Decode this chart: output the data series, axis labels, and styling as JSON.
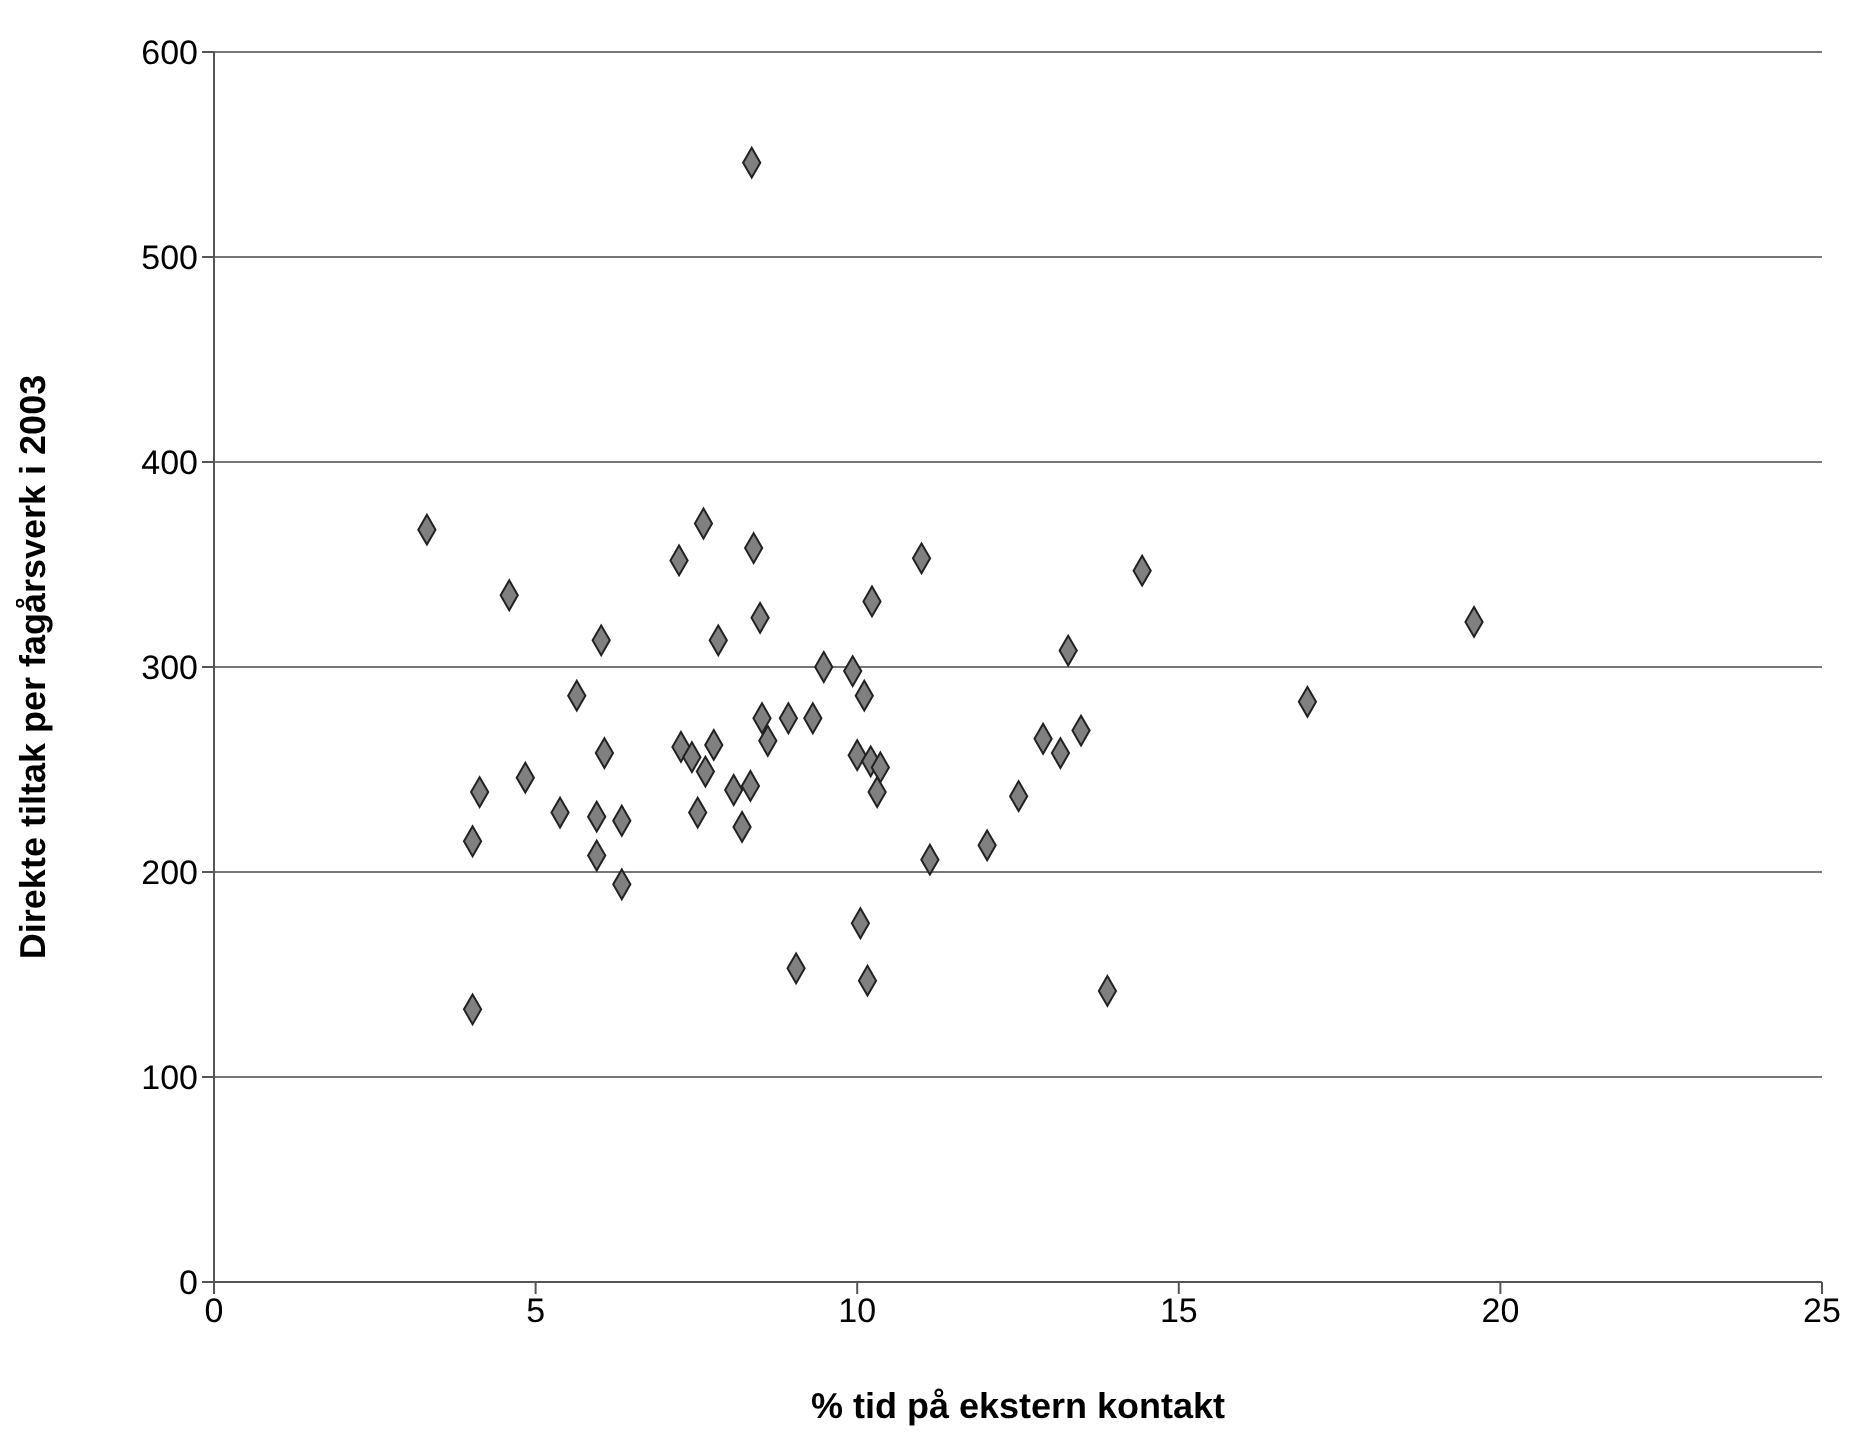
{
  "chart_data": {
    "type": "scatter",
    "xlabel": "% tid på ekstern kontakt",
    "ylabel": "Direkte tiltak per fagårsverk i 2003",
    "xlim": [
      0,
      25
    ],
    "xticks": [
      0,
      5,
      10,
      15,
      20,
      25
    ],
    "ylim": [
      0,
      600
    ],
    "yticks": [
      0,
      100,
      200,
      300,
      400,
      500,
      600
    ],
    "grid": "y",
    "marker": "diamond",
    "legend": false,
    "series": [
      {
        "color": "#808080",
        "x": [
          8.36,
          3.31,
          7.61,
          8.39,
          7.23,
          11.0,
          4.59,
          14.43,
          10.23,
          8.49,
          6.02,
          7.84,
          19.59,
          13.28,
          9.48,
          9.93,
          5.64,
          10.11,
          17.0,
          8.52,
          8.93,
          9.31,
          8.61,
          13.48,
          7.77,
          6.07,
          12.89,
          13.16,
          7.26,
          7.43,
          7.64,
          10.0,
          10.21,
          10.36,
          4.84,
          4.13,
          10.31,
          8.08,
          8.34,
          12.51,
          5.38,
          7.52,
          5.95,
          6.34,
          8.21,
          4.02,
          12.02,
          11.13,
          5.95,
          6.34,
          10.05,
          9.05,
          10.16,
          13.89,
          4.02
        ],
        "values": [
          546,
          367,
          370,
          358,
          352,
          353,
          335,
          347,
          332,
          324,
          313,
          313,
          322,
          308,
          300,
          298,
          286,
          286,
          283,
          275,
          275,
          275,
          264,
          269,
          262,
          258,
          265,
          258,
          261,
          256,
          249,
          257,
          254,
          251,
          246,
          239,
          239,
          240,
          242,
          237,
          229,
          229,
          227,
          225,
          222,
          215,
          213,
          206,
          208,
          194,
          175,
          153,
          147,
          142,
          133
        ]
      }
    ]
  }
}
